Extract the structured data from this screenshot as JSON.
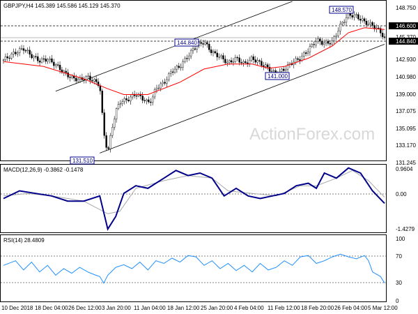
{
  "colors": {
    "candle_up": "#ffffff",
    "candle_down": "#000000",
    "candle_outline": "#000000",
    "ma": "#ff0000",
    "channel": "#000000",
    "macd": "#00008b",
    "signal": "#a8a8a8",
    "rsi": "#1e90ff",
    "label_box": "#00008b",
    "watermark": "#d8d8d8"
  },
  "price_panel": {
    "symbol_header": "GBPJPY,H4  145.389 145.586 145.129 145.370",
    "watermark": "ActionForex.com",
    "y_ticks": [
      "148.750",
      "146.600",
      "145.370",
      "144.840",
      "142.930",
      "140.980",
      "139.000",
      "137.075",
      "135.095",
      "133.170",
      "131.245"
    ],
    "annotations": [
      "144.840",
      "148.570",
      "141.000",
      "131.510"
    ],
    "dashed_level_1": "146.600",
    "dashed_level_2": "144.840"
  },
  "macd_panel": {
    "header": "MACD(12,26,9) -0.3862 -0.1478",
    "y_ticks": [
      "0.9604",
      "0.00",
      "-1.4279"
    ]
  },
  "rsi_panel": {
    "header": "RSI(14) 28.4809",
    "y_ticks": [
      "100",
      "70",
      "30",
      "0"
    ]
  },
  "x_ticks": [
    "10 Dec 2018",
    "18 Dec 04:00",
    "26 Dec 12:00",
    "3 Jan 20:00",
    "11 Jan 04:00",
    "18 Jan 12:00",
    "25 Jan 20:00",
    "4 Feb 04:00",
    "11 Feb 12:00",
    "18 Feb 20:00",
    "26 Feb 04:00",
    "5 Mar 12:00"
  ],
  "chart_data": {
    "type": "line",
    "x_range": [
      "10 Dec 2018",
      "6 Mar 2019"
    ],
    "ylim": [
      130.6,
      149.9
    ],
    "key_levels": {
      "low": 131.51,
      "swing_1": 144.84,
      "swing_2": 141.0,
      "high": 148.57,
      "last": 145.37,
      "resistance": 146.6
    },
    "close_path": [
      [
        0,
        142.8
      ],
      [
        3,
        143.7
      ],
      [
        5,
        144.2
      ],
      [
        7,
        143.3
      ],
      [
        9,
        142.7
      ],
      [
        11,
        142.9
      ],
      [
        13,
        142.2
      ],
      [
        15,
        141.3
      ],
      [
        17,
        140.6
      ],
      [
        19,
        140.4
      ],
      [
        21,
        140.7
      ],
      [
        23,
        140.1
      ],
      [
        24,
        139.8
      ],
      [
        25,
        134.0
      ],
      [
        26,
        131.5
      ],
      [
        27,
        134.5
      ],
      [
        28,
        136.5
      ],
      [
        29,
        137.7
      ],
      [
        31,
        138.0
      ],
      [
        33,
        138.7
      ],
      [
        35,
        138.0
      ],
      [
        36,
        137.6
      ],
      [
        37,
        138.0
      ],
      [
        38,
        139.4
      ],
      [
        40,
        140.0
      ],
      [
        42,
        141.5
      ],
      [
        44,
        142.0
      ],
      [
        46,
        143.3
      ],
      [
        48,
        144.5
      ],
      [
        50,
        145.0
      ],
      [
        52,
        143.7
      ],
      [
        54,
        143.2
      ],
      [
        56,
        142.4
      ],
      [
        58,
        143.0
      ],
      [
        60,
        142.3
      ],
      [
        62,
        143.0
      ],
      [
        64,
        142.4
      ],
      [
        66,
        141.8
      ],
      [
        68,
        141.0
      ],
      [
        70,
        141.7
      ],
      [
        72,
        142.5
      ],
      [
        74,
        143.0
      ],
      [
        76,
        144.0
      ],
      [
        78,
        145.2
      ],
      [
        80,
        144.8
      ],
      [
        82,
        145.0
      ],
      [
        84,
        147.0
      ],
      [
        86,
        148.3
      ],
      [
        88,
        148.1
      ],
      [
        90,
        147.4
      ],
      [
        92,
        147.0
      ],
      [
        94,
        146.2
      ],
      [
        95,
        145.37
      ]
    ],
    "ma_path": [
      [
        0,
        142.6
      ],
      [
        10,
        142.0
      ],
      [
        20,
        140.5
      ],
      [
        26,
        139.3
      ],
      [
        30,
        138.6
      ],
      [
        36,
        138.6
      ],
      [
        44,
        140.1
      ],
      [
        50,
        141.7
      ],
      [
        56,
        142.3
      ],
      [
        62,
        142.3
      ],
      [
        66,
        141.8
      ],
      [
        70,
        142.0
      ],
      [
        76,
        143.0
      ],
      [
        82,
        144.5
      ],
      [
        86,
        146.1
      ],
      [
        90,
        146.7
      ],
      [
        95,
        146.5
      ]
    ],
    "channel": {
      "upper": [
        [
          13,
          139.0
        ],
        [
          72,
          149.9
        ]
      ],
      "lower": [
        [
          24,
          131.5
        ],
        [
          95,
          144.7
        ]
      ]
    },
    "macd": {
      "macd_path": [
        [
          0,
          -0.2
        ],
        [
          4,
          0.1
        ],
        [
          8,
          0.0
        ],
        [
          12,
          -0.1
        ],
        [
          16,
          -0.3
        ],
        [
          20,
          -0.3
        ],
        [
          24,
          -0.1
        ],
        [
          26,
          -1.4
        ],
        [
          28,
          -0.9
        ],
        [
          30,
          0.0
        ],
        [
          33,
          0.3
        ],
        [
          36,
          0.2
        ],
        [
          40,
          0.6
        ],
        [
          43,
          0.9
        ],
        [
          46,
          0.7
        ],
        [
          49,
          0.8
        ],
        [
          52,
          0.6
        ],
        [
          55,
          -0.1
        ],
        [
          58,
          0.2
        ],
        [
          61,
          -0.1
        ],
        [
          64,
          -0.2
        ],
        [
          67,
          -0.1
        ],
        [
          70,
          0.0
        ],
        [
          73,
          0.3
        ],
        [
          76,
          0.4
        ],
        [
          78,
          0.2
        ],
        [
          80,
          0.8
        ],
        [
          83,
          0.6
        ],
        [
          86,
          1.0
        ],
        [
          89,
          0.8
        ],
        [
          92,
          0.1
        ],
        [
          95,
          -0.39
        ]
      ],
      "signal_path": [
        [
          0,
          -0.1
        ],
        [
          6,
          0.0
        ],
        [
          12,
          -0.1
        ],
        [
          20,
          -0.3
        ],
        [
          26,
          -0.8
        ],
        [
          29,
          -0.7
        ],
        [
          33,
          0.2
        ],
        [
          40,
          0.5
        ],
        [
          46,
          0.7
        ],
        [
          52,
          0.6
        ],
        [
          56,
          0.1
        ],
        [
          62,
          0.0
        ],
        [
          68,
          -0.1
        ],
        [
          74,
          0.3
        ],
        [
          78,
          0.3
        ],
        [
          83,
          0.6
        ],
        [
          87,
          0.9
        ],
        [
          91,
          0.5
        ],
        [
          95,
          -0.15
        ]
      ],
      "ylim": [
        -1.5,
        1.1
      ]
    },
    "rsi": {
      "path": [
        [
          0,
          55
        ],
        [
          3,
          62
        ],
        [
          5,
          48
        ],
        [
          7,
          60
        ],
        [
          9,
          45
        ],
        [
          11,
          55
        ],
        [
          13,
          40
        ],
        [
          15,
          50
        ],
        [
          17,
          43
        ],
        [
          19,
          52
        ],
        [
          21,
          45
        ],
        [
          23,
          40
        ],
        [
          24,
          38
        ],
        [
          25,
          28
        ],
        [
          26,
          40
        ],
        [
          28,
          52
        ],
        [
          30,
          56
        ],
        [
          32,
          50
        ],
        [
          34,
          60
        ],
        [
          36,
          48
        ],
        [
          38,
          62
        ],
        [
          40,
          58
        ],
        [
          42,
          66
        ],
        [
          44,
          60
        ],
        [
          46,
          70
        ],
        [
          48,
          68
        ],
        [
          50,
          55
        ],
        [
          52,
          62
        ],
        [
          54,
          50
        ],
        [
          56,
          58
        ],
        [
          58,
          47
        ],
        [
          60,
          55
        ],
        [
          62,
          45
        ],
        [
          64,
          58
        ],
        [
          66,
          48
        ],
        [
          68,
          52
        ],
        [
          70,
          62
        ],
        [
          72,
          55
        ],
        [
          74,
          68
        ],
        [
          76,
          70
        ],
        [
          78,
          58
        ],
        [
          80,
          62
        ],
        [
          82,
          68
        ],
        [
          84,
          72
        ],
        [
          86,
          68
        ],
        [
          88,
          65
        ],
        [
          90,
          70
        ],
        [
          91,
          62
        ],
        [
          92,
          45
        ],
        [
          94,
          38
        ],
        [
          95,
          28
        ]
      ],
      "ylim": [
        0,
        100
      ]
    }
  }
}
